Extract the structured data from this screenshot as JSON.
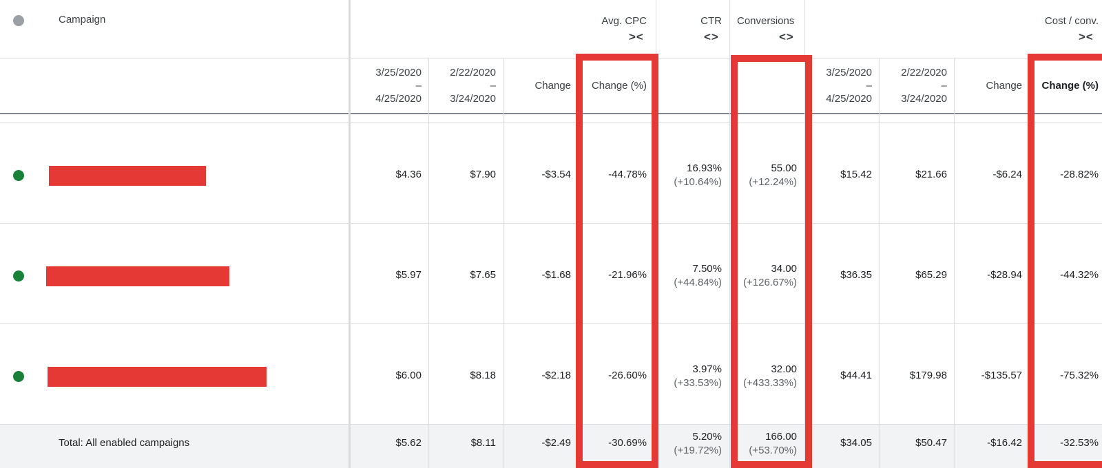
{
  "colors": {
    "active": "#188038",
    "header_dot": "#9aa0a6",
    "redact": "#e53935",
    "highlight": "#e53935"
  },
  "header": {
    "campaign": "Campaign",
    "avg_cpc": "Avg. CPC",
    "ctr": "CTR",
    "conversions": "Conversions",
    "cost_conv": "Cost / conv."
  },
  "subheader": {
    "range1_start": "3/25/2020",
    "range1_dash": "–",
    "range1_end": "4/25/2020",
    "range2_start": "2/22/2020",
    "range2_dash": "–",
    "range2_end": "3/24/2020",
    "change": "Change",
    "change_pct": "Change (%)"
  },
  "icons": {
    "collapse": "collapse-arrows-icon",
    "expand": "expand-arrows-icon"
  },
  "rows": [
    {
      "cpc_a": "$4.36",
      "cpc_b": "$7.90",
      "cpc_change": "-$3.54",
      "cpc_pct": "-44.78%",
      "ctr": "16.93%",
      "ctr_pct": "(+10.64%)",
      "conv": "55.00",
      "conv_pct": "(+12.24%)",
      "cc_a": "$15.42",
      "cc_b": "$21.66",
      "cc_change": "-$6.24",
      "cc_pct": "-28.82%"
    },
    {
      "cpc_a": "$5.97",
      "cpc_b": "$7.65",
      "cpc_change": "-$1.68",
      "cpc_pct": "-21.96%",
      "ctr": "7.50%",
      "ctr_pct": "(+44.84%)",
      "conv": "34.00",
      "conv_pct": "(+126.67%)",
      "cc_a": "$36.35",
      "cc_b": "$65.29",
      "cc_change": "-$28.94",
      "cc_pct": "-44.32%"
    },
    {
      "cpc_a": "$6.00",
      "cpc_b": "$8.18",
      "cpc_change": "-$2.18",
      "cpc_pct": "-26.60%",
      "ctr": "3.97%",
      "ctr_pct": "(+33.53%)",
      "conv": "32.00",
      "conv_pct": "(+433.33%)",
      "cc_a": "$44.41",
      "cc_b": "$179.98",
      "cc_change": "-$135.57",
      "cc_pct": "-75.32%"
    }
  ],
  "total": {
    "label": "Total: All enabled campaigns",
    "cpc_a": "$5.62",
    "cpc_b": "$8.11",
    "cpc_change": "-$2.49",
    "cpc_pct": "-30.69%",
    "ctr": "5.20%",
    "ctr_pct": "(+19.72%)",
    "conv": "166.00",
    "conv_pct": "(+53.70%)",
    "cc_a": "$34.05",
    "cc_b": "$50.47",
    "cc_change": "-$16.42",
    "cc_pct": "-32.53%"
  }
}
